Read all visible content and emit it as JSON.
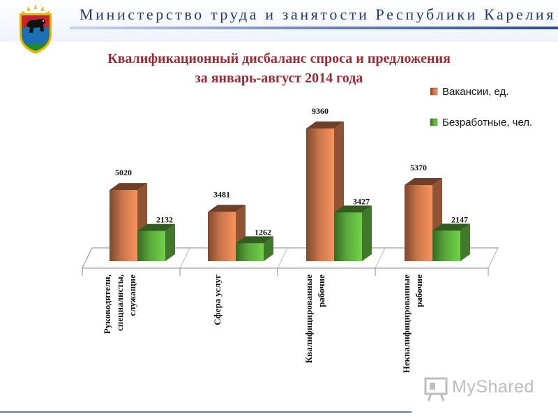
{
  "header": {
    "org_name": "Министерство труда и занятости Республики Карелия",
    "emblem_icon": "karelia-coat-of-arms-icon"
  },
  "title": {
    "line1": "Квалификационный дисбаланс спроса и предложения",
    "line2": "за январь-август 2014 года"
  },
  "chart_data": {
    "type": "bar",
    "title": "Квалификационный дисбаланс спроса и предложения за январь-август 2014 года",
    "categories": [
      [
        "Руководители,",
        "специалисты,",
        "служащие"
      ],
      [
        "Сфера услуг"
      ],
      [
        "Квалифицированные",
        "рабочие"
      ],
      [
        "Неквалифицированные",
        "рабочие"
      ]
    ],
    "series": [
      {
        "name": "Вакансии, ед.",
        "values": [
          5020,
          3481,
          9360,
          5370
        ]
      },
      {
        "name": "Безработные, чел.",
        "values": [
          2132,
          1262,
          3427,
          2147
        ]
      }
    ],
    "ylim": [
      0,
      9360
    ],
    "grid": false,
    "legend_position": "top-right",
    "colors": {
      "vacancies": "#c8754a",
      "unemployed": "#5aa83a"
    }
  },
  "watermark": {
    "text": "MyShared",
    "icon": "presentation-board-icon"
  }
}
